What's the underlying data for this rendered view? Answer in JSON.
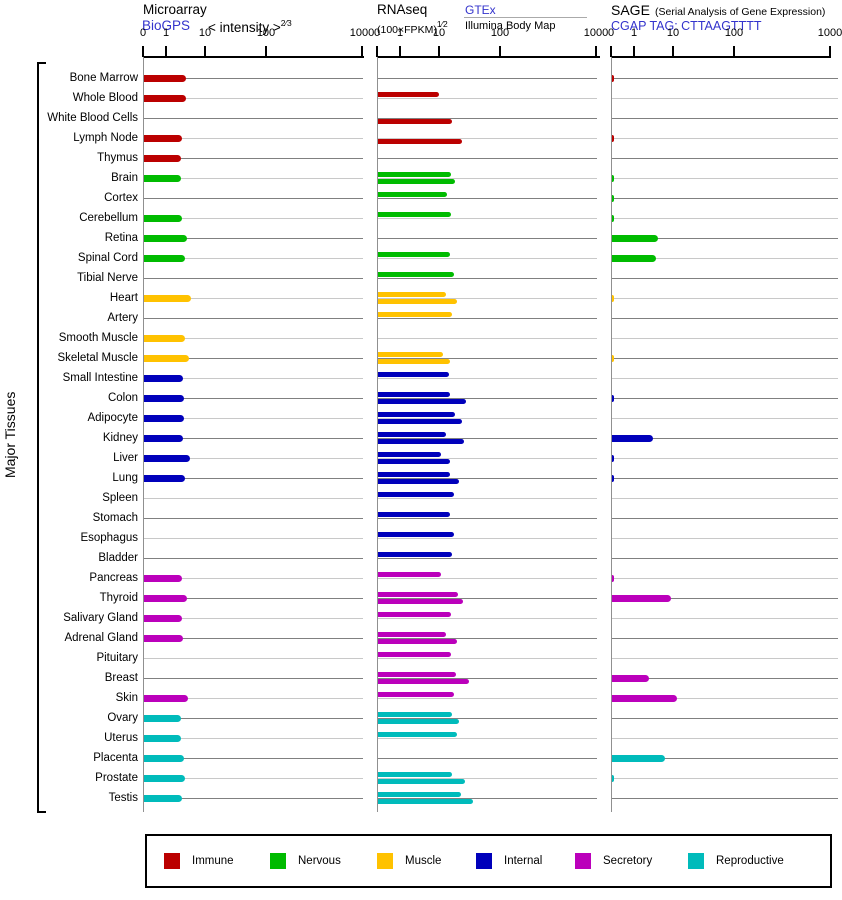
{
  "sidebar_label": "Major Tissues",
  "panels": {
    "microarray": {
      "title": "Microarray",
      "source": "BioGPS",
      "unit": "< intensity >",
      "unit_sup": "2⁄3"
    },
    "rnaseq": {
      "title": "RNAseq",
      "unit": "(100×FPKM)",
      "unit_sup": "1⁄2",
      "source_gtex": "GTEx",
      "source_illumina": "Illumina Body Map"
    },
    "sage": {
      "title": "SAGE",
      "note": "(Serial Analysis of Gene Expression)",
      "source": "CGAP TAG: CTTAAGTTTT"
    }
  },
  "legend": [
    {
      "label": "Immune",
      "color": "#bb0000"
    },
    {
      "label": "Nervous",
      "color": "#00bb00"
    },
    {
      "label": "Muscle",
      "color": "#ffc200"
    },
    {
      "label": "Internal",
      "color": "#0000bb"
    },
    {
      "label": "Secretory",
      "color": "#bb00bb"
    },
    {
      "label": "Reproductive",
      "color": "#00bbbb"
    }
  ],
  "chart_data": {
    "type": "bar",
    "orientation": "horizontal",
    "x_scale": "compressed log with zero point",
    "x_ticks": [
      "0",
      "1",
      "10",
      "100",
      "1000"
    ],
    "series_labels": {
      "microarray": "BioGPS microarray intensity",
      "rnaseq_gtex": "GTEx RNAseq",
      "rnaseq_illumina": "Illumina Body Map RNAseq",
      "sage": "SAGE CGAP tag count"
    },
    "group_colors": {
      "immune": "#bb0000",
      "nervous": "#00bb00",
      "muscle": "#ffc200",
      "internal": "#0000bb",
      "secretory": "#bb00bb",
      "reproductive": "#00bbbb"
    },
    "tissues": [
      {
        "name": "Bone Marrow",
        "group": "immune",
        "microarray": 3.1,
        "rnaseq_gtex": null,
        "rnaseq_illumina": null,
        "sage": 0.1
      },
      {
        "name": "Whole Blood",
        "group": "immune",
        "microarray": 3.1,
        "rnaseq_gtex": 9.5,
        "rnaseq_illumina": null,
        "sage": null
      },
      {
        "name": "White Blood Cells",
        "group": "immune",
        "microarray": null,
        "rnaseq_gtex": null,
        "rnaseq_illumina": 15.5,
        "sage": null
      },
      {
        "name": "Lymph Node",
        "group": "immune",
        "microarray": 2.4,
        "rnaseq_gtex": null,
        "rnaseq_illumina": 23,
        "sage": 0.1
      },
      {
        "name": "Thymus",
        "group": "immune",
        "microarray": 2.3,
        "rnaseq_gtex": null,
        "rnaseq_illumina": null,
        "sage": null
      },
      {
        "name": "Brain",
        "group": "nervous",
        "microarray": 2.3,
        "rnaseq_gtex": 15,
        "rnaseq_illumina": 17.5,
        "sage": 0.1
      },
      {
        "name": "Cortex",
        "group": "nervous",
        "microarray": null,
        "rnaseq_gtex": 13,
        "rnaseq_illumina": null,
        "sage": 0.1
      },
      {
        "name": "Cerebellum",
        "group": "nervous",
        "microarray": 2.4,
        "rnaseq_gtex": 15,
        "rnaseq_illumina": null,
        "sage": 0.1
      },
      {
        "name": "Retina",
        "group": "nervous",
        "microarray": 3.3,
        "rnaseq_gtex": null,
        "rnaseq_illumina": null,
        "sage": 3.9
      },
      {
        "name": "Spinal Cord",
        "group": "nervous",
        "microarray": 2.9,
        "rnaseq_gtex": 14.5,
        "rnaseq_illumina": null,
        "sage": 3.4
      },
      {
        "name": "Tibial Nerve",
        "group": "nervous",
        "microarray": null,
        "rnaseq_gtex": 17,
        "rnaseq_illumina": null,
        "sage": null
      },
      {
        "name": "Heart",
        "group": "muscle",
        "microarray": 4.1,
        "rnaseq_gtex": 12.5,
        "rnaseq_illumina": 19,
        "sage": 0.1
      },
      {
        "name": "Artery",
        "group": "muscle",
        "microarray": null,
        "rnaseq_gtex": 15.5,
        "rnaseq_illumina": null,
        "sage": null
      },
      {
        "name": "Smooth Muscle",
        "group": "muscle",
        "microarray": 2.9,
        "rnaseq_gtex": null,
        "rnaseq_illumina": null,
        "sage": null
      },
      {
        "name": "Skeletal Muscle",
        "group": "muscle",
        "microarray": 3.7,
        "rnaseq_gtex": 11,
        "rnaseq_illumina": 14.5,
        "sage": 0.1
      },
      {
        "name": "Small Intestine",
        "group": "internal",
        "microarray": 2.6,
        "rnaseq_gtex": 14,
        "rnaseq_illumina": null,
        "sage": null
      },
      {
        "name": "Colon",
        "group": "internal",
        "microarray": 2.7,
        "rnaseq_gtex": 14.5,
        "rnaseq_illumina": 27,
        "sage": 0.1
      },
      {
        "name": "Adipocyte",
        "group": "internal",
        "microarray": 2.7,
        "rnaseq_gtex": 17.5,
        "rnaseq_illumina": 23,
        "sage": null
      },
      {
        "name": "Kidney",
        "group": "internal",
        "microarray": 2.6,
        "rnaseq_gtex": 12.5,
        "rnaseq_illumina": 25,
        "sage": 2.9
      },
      {
        "name": "Liver",
        "group": "internal",
        "microarray": 3.9,
        "rnaseq_gtex": 10.5,
        "rnaseq_illumina": 14.5,
        "sage": 0.1
      },
      {
        "name": "Lung",
        "group": "internal",
        "microarray": 2.9,
        "rnaseq_gtex": 14.5,
        "rnaseq_illumina": 20.5,
        "sage": 0.1
      },
      {
        "name": "Spleen",
        "group": "internal",
        "microarray": null,
        "rnaseq_gtex": 17,
        "rnaseq_illumina": null,
        "sage": null
      },
      {
        "name": "Stomach",
        "group": "internal",
        "microarray": null,
        "rnaseq_gtex": 14.5,
        "rnaseq_illumina": null,
        "sage": null
      },
      {
        "name": "Esophagus",
        "group": "internal",
        "microarray": null,
        "rnaseq_gtex": 17,
        "rnaseq_illumina": null,
        "sage": null
      },
      {
        "name": "Bladder",
        "group": "internal",
        "microarray": null,
        "rnaseq_gtex": 15.5,
        "rnaseq_illumina": null,
        "sage": null
      },
      {
        "name": "Pancreas",
        "group": "secretory",
        "microarray": 2.4,
        "rnaseq_gtex": 10.5,
        "rnaseq_illumina": null,
        "sage": 0.1
      },
      {
        "name": "Thyroid",
        "group": "secretory",
        "microarray": 3.3,
        "rnaseq_gtex": 19.5,
        "rnaseq_illumina": 24,
        "sage": 8.5
      },
      {
        "name": "Salivary Gland",
        "group": "secretory",
        "microarray": 2.4,
        "rnaseq_gtex": 15,
        "rnaseq_illumina": null,
        "sage": null
      },
      {
        "name": "Adrenal Gland",
        "group": "secretory",
        "microarray": 2.6,
        "rnaseq_gtex": 12.5,
        "rnaseq_illumina": 19,
        "sage": null
      },
      {
        "name": "Pituitary",
        "group": "secretory",
        "microarray": null,
        "rnaseq_gtex": 15,
        "rnaseq_illumina": null,
        "sage": null
      },
      {
        "name": "Breast",
        "group": "secretory",
        "microarray": null,
        "rnaseq_gtex": 18,
        "rnaseq_illumina": 30,
        "sage": 2.3
      },
      {
        "name": "Skin",
        "group": "secretory",
        "microarray": 3.5,
        "rnaseq_gtex": 17,
        "rnaseq_illumina": null,
        "sage": 11
      },
      {
        "name": "Ovary",
        "group": "reproductive",
        "microarray": 2.3,
        "rnaseq_gtex": 15.5,
        "rnaseq_illumina": 20.5,
        "sage": null
      },
      {
        "name": "Uterus",
        "group": "reproductive",
        "microarray": 2.3,
        "rnaseq_gtex": 19,
        "rnaseq_illumina": null,
        "sage": null
      },
      {
        "name": "Placenta",
        "group": "reproductive",
        "microarray": 2.7,
        "rnaseq_gtex": null,
        "rnaseq_illumina": null,
        "sage": 6
      },
      {
        "name": "Prostate",
        "group": "reproductive",
        "microarray": 2.9,
        "rnaseq_gtex": 15.5,
        "rnaseq_illumina": 26,
        "sage": 0.1
      },
      {
        "name": "Testis",
        "group": "reproductive",
        "microarray": 2.4,
        "rnaseq_gtex": 22,
        "rnaseq_illumina": 35,
        "sage": null
      }
    ]
  }
}
